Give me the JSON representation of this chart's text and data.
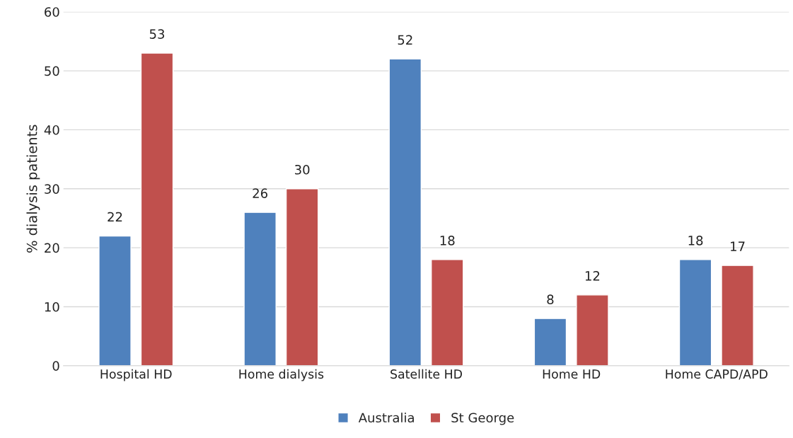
{
  "chart_data": {
    "type": "bar",
    "ylabel": "% dialysis patients",
    "categories": [
      "Hospital HD",
      "Home dialysis",
      "Satellite HD",
      "Home HD",
      "Home CAPD/APD"
    ],
    "series": [
      {
        "name": "Australia",
        "color": "#4f81bd",
        "values": [
          22,
          26,
          52,
          8,
          18
        ]
      },
      {
        "name": "St George",
        "color": "#c0504d",
        "values": [
          53,
          30,
          18,
          12,
          17
        ]
      }
    ],
    "ylim": [
      0,
      60
    ],
    "yticks": [
      0,
      10,
      20,
      30,
      40,
      50,
      60
    ],
    "grid": "y",
    "legend": "bottom",
    "data_labels": true
  }
}
